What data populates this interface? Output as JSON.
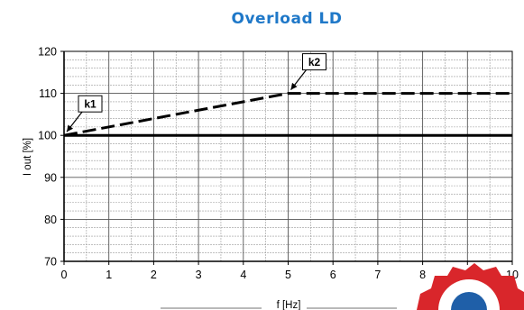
{
  "chart_data": {
    "type": "line",
    "title": "Overload LD",
    "xlabel": "f [Hz]",
    "ylabel": "I out [%]",
    "xlim": [
      0,
      10
    ],
    "ylim": [
      70,
      120
    ],
    "x_ticks": [
      0,
      1,
      2,
      3,
      4,
      5,
      6,
      7,
      8,
      9,
      10
    ],
    "y_ticks": [
      70,
      80,
      90,
      100,
      110,
      120
    ],
    "x_minor_step": 0.5,
    "y_minor_step": 2,
    "grid": true,
    "series": [
      {
        "style": "dashed",
        "color": "#000000",
        "x": [
          0,
          5,
          10
        ],
        "y": [
          100,
          110,
          110
        ]
      },
      {
        "style": "solid",
        "color": "#000000",
        "x": [
          0,
          10
        ],
        "y": [
          100,
          100
        ]
      }
    ],
    "annotations": [
      {
        "text": "k1",
        "x": 0,
        "y": 100,
        "label_position": "upper-right"
      },
      {
        "text": "k2",
        "x": 5,
        "y": 110,
        "label_position": "upper-right"
      }
    ],
    "colors": {
      "title": "#1f78c8",
      "grid": "#9a9a9a",
      "axis": "#000000",
      "logo_red": "#d9262b",
      "logo_blue": "#1f5fa8"
    }
  }
}
